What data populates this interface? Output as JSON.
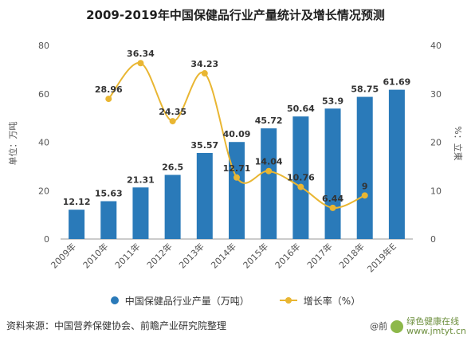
{
  "chart_data": {
    "type": "bar",
    "title": "2009-2019年中国保健品行业产量统计及增长情况预测",
    "categories": [
      "2009年",
      "2010年",
      "2011年",
      "2012年",
      "2013年",
      "2014年",
      "2015年",
      "2016年",
      "2017年",
      "2018年",
      "2019年E"
    ],
    "series": [
      {
        "name": "中国保健品行业产量（万吨）",
        "type": "bar",
        "axis": "left",
        "color": "#2a7ab9",
        "values": [
          12.12,
          15.63,
          21.31,
          26.5,
          35.57,
          40.09,
          45.72,
          50.64,
          53.9,
          58.75,
          61.69
        ],
        "labels": [
          "12.12",
          "15.63",
          "21.31",
          "26.5",
          "35.57",
          "40.09",
          "45.72",
          "50.64",
          "53.9",
          "58.75",
          "61.69"
        ]
      },
      {
        "name": "增长率（%）",
        "type": "line",
        "axis": "right",
        "color": "#e9b632",
        "values": [
          null,
          28.96,
          36.34,
          24.35,
          34.23,
          12.71,
          14.04,
          10.76,
          6.44,
          9,
          null
        ],
        "labels": [
          "",
          "28.96",
          "36.34",
          "24.35",
          "34.23",
          "12.71",
          "14.04",
          "10.76",
          "6.44",
          "9",
          ""
        ]
      }
    ],
    "ylabel": "单位：万吨",
    "y2label": "%：立東",
    "ylim": [
      0,
      80
    ],
    "y2lim": [
      0,
      40
    ],
    "yticks": [
      "0",
      "20",
      "40",
      "60",
      "80"
    ],
    "y2ticks": [
      "0",
      "10",
      "20",
      "30",
      "40"
    ],
    "grid": false,
    "legend_position": "bottom"
  },
  "source": "资料来源：中国营养保健协会、前瞻产业研究院整理",
  "brand": {
    "prefix": "@前",
    "line1": "绿色健康在线",
    "line2": "www.jmtyt.cn"
  }
}
